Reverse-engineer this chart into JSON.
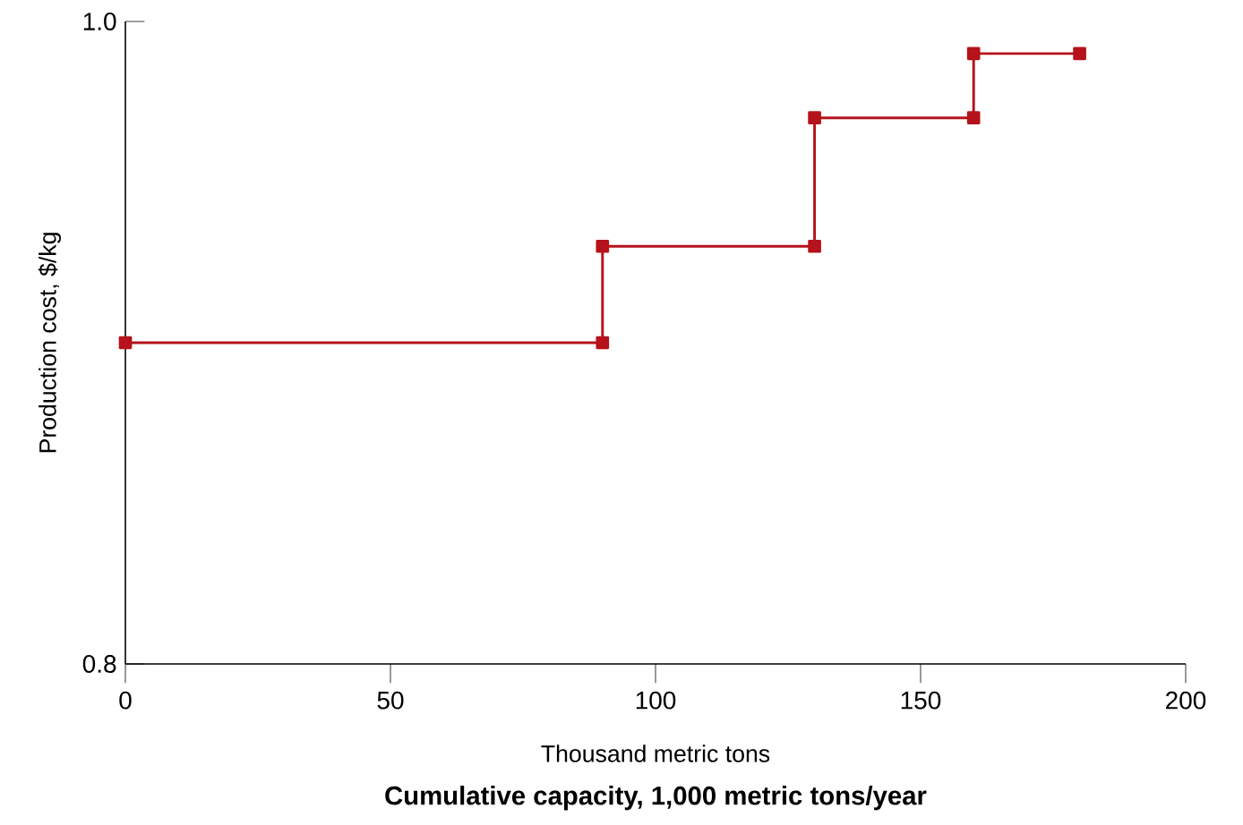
{
  "chart_data": {
    "type": "line",
    "xlabel": "Thousand metric tons",
    "ylabel": "Production cost, $/kg",
    "annotations": [
      "Cumulative capacity, 1,000 metric tons/year"
    ],
    "x": [
      0,
      90,
      90,
      130,
      130,
      160,
      160,
      180
    ],
    "series": [
      {
        "color": "#b5121b",
        "values": [
          0.9,
          0.9,
          0.93,
          0.93,
          0.97,
          0.97,
          0.99,
          0.99
        ]
      }
    ],
    "xlim": [
      0,
      200
    ],
    "xticks": [
      0,
      50,
      100,
      150,
      200
    ],
    "ylim": [
      0.8,
      1.0
    ],
    "yticks": [
      0.8,
      {
        "value": 1.0,
        "label": "1.0"
      }
    ],
    "grid": false,
    "marker": "square",
    "line_style": "solid"
  }
}
